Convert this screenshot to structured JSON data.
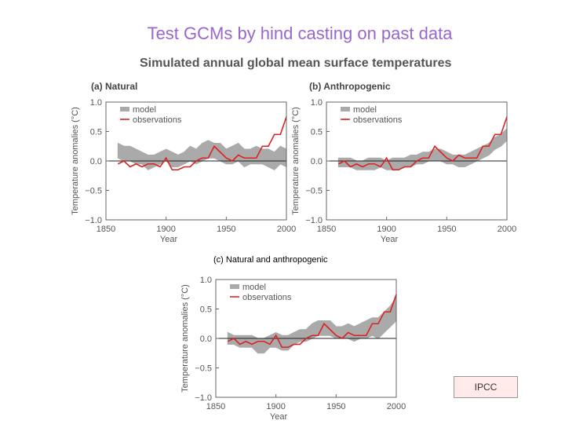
{
  "slide": {
    "title": "Test GCMs by hind casting on past data",
    "source": "IPCC"
  },
  "figure": {
    "title": "Simulated annual global mean surface temperatures"
  },
  "chart_data": [
    {
      "type": "line",
      "title": "(a) Natural",
      "xlabel": "Year",
      "ylabel": "Temperature anomalies (°C)",
      "xlim": [
        1850,
        2000
      ],
      "ylim": [
        -1.0,
        1.0
      ],
      "xticks": [
        "1850",
        "1900",
        "1950",
        "2000"
      ],
      "yticks": [
        "1.0",
        "0.5",
        "0.0",
        "−0.5",
        "−1.0"
      ],
      "legend": [
        "model",
        "observations"
      ],
      "legend_position": "top-left",
      "colors": {
        "model": "#aaaaaa",
        "observations": "#dd2222"
      },
      "x": [
        1860,
        1865,
        1870,
        1875,
        1880,
        1885,
        1890,
        1895,
        1900,
        1905,
        1910,
        1915,
        1920,
        1925,
        1930,
        1935,
        1940,
        1945,
        1950,
        1955,
        1960,
        1965,
        1970,
        1975,
        1980,
        1985,
        1990,
        1995,
        2000
      ],
      "series": [
        {
          "name": "model",
          "band_low": [
            0.05,
            0.0,
            0.0,
            -0.05,
            -0.05,
            -0.15,
            -0.1,
            -0.05,
            0.0,
            -0.1,
            -0.1,
            -0.05,
            0.0,
            -0.05,
            0.0,
            0.05,
            0.05,
            0.0,
            -0.05,
            -0.05,
            0.0,
            -0.1,
            -0.05,
            -0.05,
            -0.05,
            -0.1,
            -0.15,
            -0.05,
            -0.1
          ],
          "band_high": [
            0.3,
            0.25,
            0.25,
            0.2,
            0.15,
            0.1,
            0.1,
            0.15,
            0.2,
            0.15,
            0.1,
            0.15,
            0.25,
            0.2,
            0.3,
            0.35,
            0.3,
            0.3,
            0.2,
            0.25,
            0.3,
            0.2,
            0.2,
            0.25,
            0.2,
            0.2,
            0.15,
            0.25,
            0.2
          ]
        },
        {
          "name": "observations",
          "values": [
            -0.05,
            0.0,
            -0.1,
            -0.05,
            -0.1,
            -0.05,
            -0.05,
            -0.1,
            0.05,
            -0.15,
            -0.15,
            -0.1,
            -0.1,
            0.0,
            0.05,
            0.05,
            0.25,
            0.15,
            0.05,
            0.0,
            0.1,
            0.05,
            0.05,
            0.05,
            0.25,
            0.25,
            0.45,
            0.45,
            0.75
          ]
        }
      ]
    },
    {
      "type": "line",
      "title": "(b) Anthropogenic",
      "xlabel": "Year",
      "ylabel": "Temperature anomalies (°C)",
      "xlim": [
        1850,
        2000
      ],
      "ylim": [
        -1.0,
        1.0
      ],
      "xticks": [
        "1850",
        "1900",
        "1950",
        "2000"
      ],
      "yticks": [
        "1.0",
        "0.5",
        "0.0",
        "−0.5",
        "−1.0"
      ],
      "legend": [
        "model",
        "observations"
      ],
      "legend_position": "top-left",
      "colors": {
        "model": "#aaaaaa",
        "observations": "#dd2222"
      },
      "x": [
        1860,
        1865,
        1870,
        1875,
        1880,
        1885,
        1890,
        1895,
        1900,
        1905,
        1910,
        1915,
        1920,
        1925,
        1930,
        1935,
        1940,
        1945,
        1950,
        1955,
        1960,
        1965,
        1970,
        1975,
        1980,
        1985,
        1990,
        1995,
        2000
      ],
      "series": [
        {
          "name": "model",
          "band_low": [
            -0.1,
            -0.1,
            -0.1,
            -0.15,
            -0.15,
            -0.15,
            -0.15,
            -0.1,
            -0.15,
            -0.15,
            -0.15,
            -0.1,
            -0.1,
            -0.05,
            -0.05,
            0.0,
            0.0,
            0.0,
            -0.05,
            -0.05,
            -0.1,
            -0.1,
            -0.05,
            0.0,
            0.05,
            0.1,
            0.2,
            0.25,
            0.35
          ],
          "band_high": [
            0.05,
            0.05,
            0.05,
            0.0,
            0.0,
            0.05,
            0.05,
            0.05,
            0.0,
            0.05,
            0.05,
            0.05,
            0.1,
            0.1,
            0.15,
            0.15,
            0.2,
            0.2,
            0.15,
            0.1,
            0.1,
            0.1,
            0.15,
            0.2,
            0.25,
            0.3,
            0.4,
            0.45,
            0.55
          ]
        },
        {
          "name": "observations",
          "values": [
            -0.05,
            0.0,
            -0.1,
            -0.05,
            -0.1,
            -0.05,
            -0.05,
            -0.1,
            0.05,
            -0.15,
            -0.15,
            -0.1,
            -0.1,
            0.0,
            0.05,
            0.05,
            0.25,
            0.15,
            0.05,
            0.0,
            0.1,
            0.05,
            0.05,
            0.05,
            0.25,
            0.25,
            0.45,
            0.45,
            0.75
          ]
        }
      ]
    },
    {
      "type": "line",
      "title": "(c)  Natural and anthropogenic",
      "xlabel": "Year",
      "ylabel": "Temperature anomalies (°C)",
      "xlim": [
        1850,
        2000
      ],
      "ylim": [
        -1.0,
        1.0
      ],
      "xticks": [
        "1850",
        "1900",
        "1950",
        "2000"
      ],
      "yticks": [
        "1.0",
        "0.5",
        "0.0",
        "−0.5",
        "−1.0"
      ],
      "legend": [
        "model",
        "observations"
      ],
      "legend_position": "top-left",
      "colors": {
        "model": "#aaaaaa",
        "observations": "#dd2222"
      },
      "x": [
        1860,
        1865,
        1870,
        1875,
        1880,
        1885,
        1890,
        1895,
        1900,
        1905,
        1910,
        1915,
        1920,
        1925,
        1930,
        1935,
        1940,
        1945,
        1950,
        1955,
        1960,
        1965,
        1970,
        1975,
        1980,
        1985,
        1990,
        1995,
        2000
      ],
      "series": [
        {
          "name": "model",
          "band_low": [
            -0.1,
            -0.1,
            -0.15,
            -0.15,
            -0.15,
            -0.25,
            -0.25,
            -0.15,
            -0.15,
            -0.2,
            -0.2,
            -0.1,
            -0.05,
            -0.05,
            0.0,
            0.05,
            0.05,
            0.05,
            0.0,
            0.0,
            0.0,
            -0.05,
            0.0,
            0.0,
            0.05,
            0.0,
            0.1,
            0.2,
            0.3
          ],
          "band_high": [
            0.1,
            0.05,
            0.05,
            0.05,
            0.05,
            0.0,
            0.0,
            0.05,
            0.1,
            0.05,
            0.05,
            0.1,
            0.15,
            0.15,
            0.25,
            0.3,
            0.3,
            0.3,
            0.2,
            0.2,
            0.25,
            0.2,
            0.25,
            0.3,
            0.35,
            0.35,
            0.45,
            0.55,
            0.7
          ]
        },
        {
          "name": "observations",
          "values": [
            -0.05,
            0.0,
            -0.1,
            -0.05,
            -0.1,
            -0.05,
            -0.05,
            -0.1,
            0.05,
            -0.15,
            -0.15,
            -0.1,
            -0.1,
            0.0,
            0.05,
            0.05,
            0.25,
            0.15,
            0.05,
            0.0,
            0.1,
            0.05,
            0.05,
            0.05,
            0.25,
            0.25,
            0.45,
            0.45,
            0.75
          ]
        }
      ]
    }
  ]
}
